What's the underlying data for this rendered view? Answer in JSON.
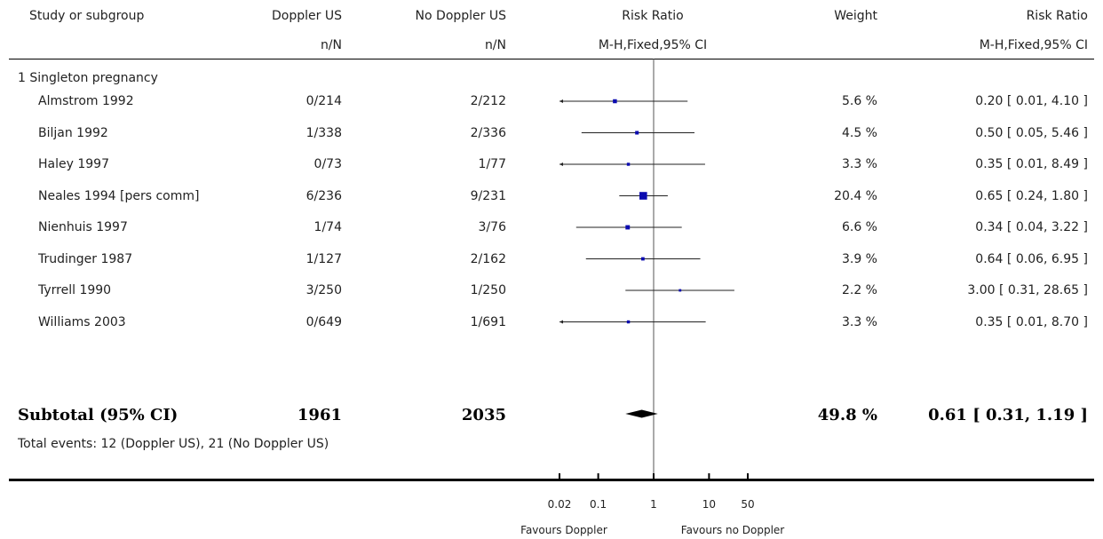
{
  "header": {
    "study": "Study or subgroup",
    "treat": "Doppler US",
    "control": "No Doppler US",
    "treat_sub": "n/N",
    "control_sub": "n/N",
    "rr": "Risk Ratio",
    "rr_sub": "M-H,Fixed,95% CI",
    "weight": "Weight",
    "rr2": "Risk Ratio",
    "rr2_sub": "M-H,Fixed,95% CI"
  },
  "subgroup_label": "1 Singleton pregnancy",
  "subtotal": {
    "label": "Subtotal (95% CI)",
    "treat": "1961",
    "control": "2035",
    "weight": "49.8 %",
    "ci": "0.61 [ 0.31, 1.19 ]"
  },
  "total_events": "Total events: 12 (Doppler US), 21 (No Doppler US)",
  "axis": {
    "ticks": [
      "0.02",
      "0.1",
      "1",
      "10",
      "50"
    ],
    "favours_left": "Favours Doppler",
    "favours_right": "Favours no Doppler"
  },
  "chart_data": {
    "type": "forest",
    "scale": "log",
    "xlim": [
      0.02,
      50
    ],
    "null_value": 1,
    "studies": [
      {
        "name": "Almstrom 1992",
        "treat": "0/214",
        "control": "2/212",
        "weight": "5.6 %",
        "ci_text": "0.20 [ 0.01, 4.10 ]",
        "rr": 0.2,
        "lo": 0.01,
        "hi": 4.1,
        "w": 5.6
      },
      {
        "name": "Biljan 1992",
        "treat": "1/338",
        "control": "2/336",
        "weight": "4.5 %",
        "ci_text": "0.50 [ 0.05, 5.46 ]",
        "rr": 0.5,
        "lo": 0.05,
        "hi": 5.46,
        "w": 4.5
      },
      {
        "name": "Haley 1997",
        "treat": "0/73",
        "control": "1/77",
        "weight": "3.3 %",
        "ci_text": "0.35 [ 0.01, 8.49 ]",
        "rr": 0.35,
        "lo": 0.01,
        "hi": 8.49,
        "w": 3.3
      },
      {
        "name": "Neales 1994 [pers comm]",
        "treat": "6/236",
        "control": "9/231",
        "weight": "20.4 %",
        "ci_text": "0.65 [ 0.24, 1.80 ]",
        "rr": 0.65,
        "lo": 0.24,
        "hi": 1.8,
        "w": 20.4
      },
      {
        "name": "Nienhuis 1997",
        "treat": "1/74",
        "control": "3/76",
        "weight": "6.6 %",
        "ci_text": "0.34 [ 0.04, 3.22 ]",
        "rr": 0.34,
        "lo": 0.04,
        "hi": 3.22,
        "w": 6.6
      },
      {
        "name": "Trudinger 1987",
        "treat": "1/127",
        "control": "2/162",
        "weight": "3.9 %",
        "ci_text": "0.64 [ 0.06, 6.95 ]",
        "rr": 0.64,
        "lo": 0.06,
        "hi": 6.95,
        "w": 3.9
      },
      {
        "name": "Tyrrell 1990",
        "treat": "3/250",
        "control": "1/250",
        "weight": "2.2 %",
        "ci_text": "3.00 [ 0.31, 28.65 ]",
        "rr": 3.0,
        "lo": 0.31,
        "hi": 28.65,
        "w": 2.2
      },
      {
        "name": "Williams 2003",
        "treat": "0/649",
        "control": "1/691",
        "weight": "3.3 %",
        "ci_text": "0.35 [ 0.01, 8.70 ]",
        "rr": 0.35,
        "lo": 0.01,
        "hi": 8.7,
        "w": 3.3
      }
    ],
    "pooled": {
      "rr": 0.61,
      "lo": 0.31,
      "hi": 1.19
    }
  }
}
